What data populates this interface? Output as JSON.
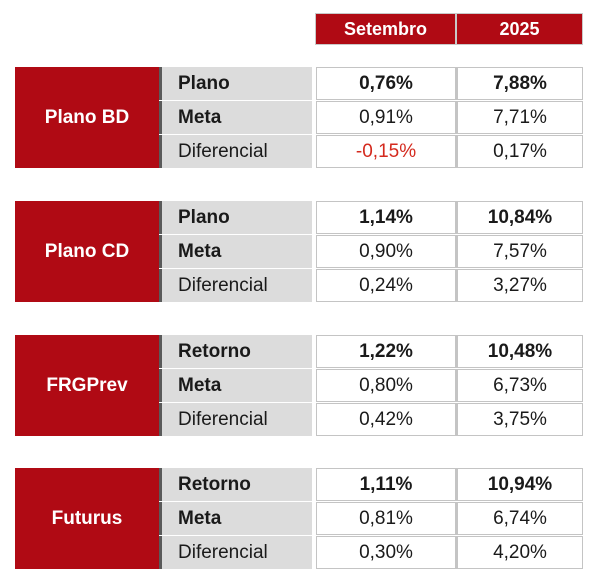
{
  "headers": {
    "month": "Setembro",
    "year": "2025"
  },
  "plans": [
    {
      "name": "Plano BD",
      "rows": [
        {
          "label": "Plano",
          "month": "0,76%",
          "year": "7,88%"
        },
        {
          "label": "Meta",
          "month": "0,91%",
          "year": "7,71%"
        },
        {
          "label": "Diferencial",
          "month": "-0,15%",
          "year": "0,17%"
        }
      ]
    },
    {
      "name": "Plano CD",
      "rows": [
        {
          "label": "Plano",
          "month": "1,14%",
          "year": "10,84%"
        },
        {
          "label": "Meta",
          "month": "0,90%",
          "year": "7,57%"
        },
        {
          "label": "Diferencial",
          "month": "0,24%",
          "year": "3,27%"
        }
      ]
    },
    {
      "name": "FRGPrev",
      "rows": [
        {
          "label": "Retorno",
          "month": "1,22%",
          "year": "10,48%"
        },
        {
          "label": "Meta",
          "month": "0,80%",
          "year": "6,73%"
        },
        {
          "label": "Diferencial",
          "month": "0,42%",
          "year": "3,75%"
        }
      ]
    },
    {
      "name": "Futurus",
      "rows": [
        {
          "label": "Retorno",
          "month": "1,11%",
          "year": "10,94%"
        },
        {
          "label": "Meta",
          "month": "0,81%",
          "year": "6,74%"
        },
        {
          "label": "Diferencial",
          "month": "0,30%",
          "year": "4,20%"
        }
      ]
    }
  ],
  "colors": {
    "header_bg": "#b00a14",
    "label_bg": "#dcdcdc",
    "negative": "#d42a1e"
  }
}
